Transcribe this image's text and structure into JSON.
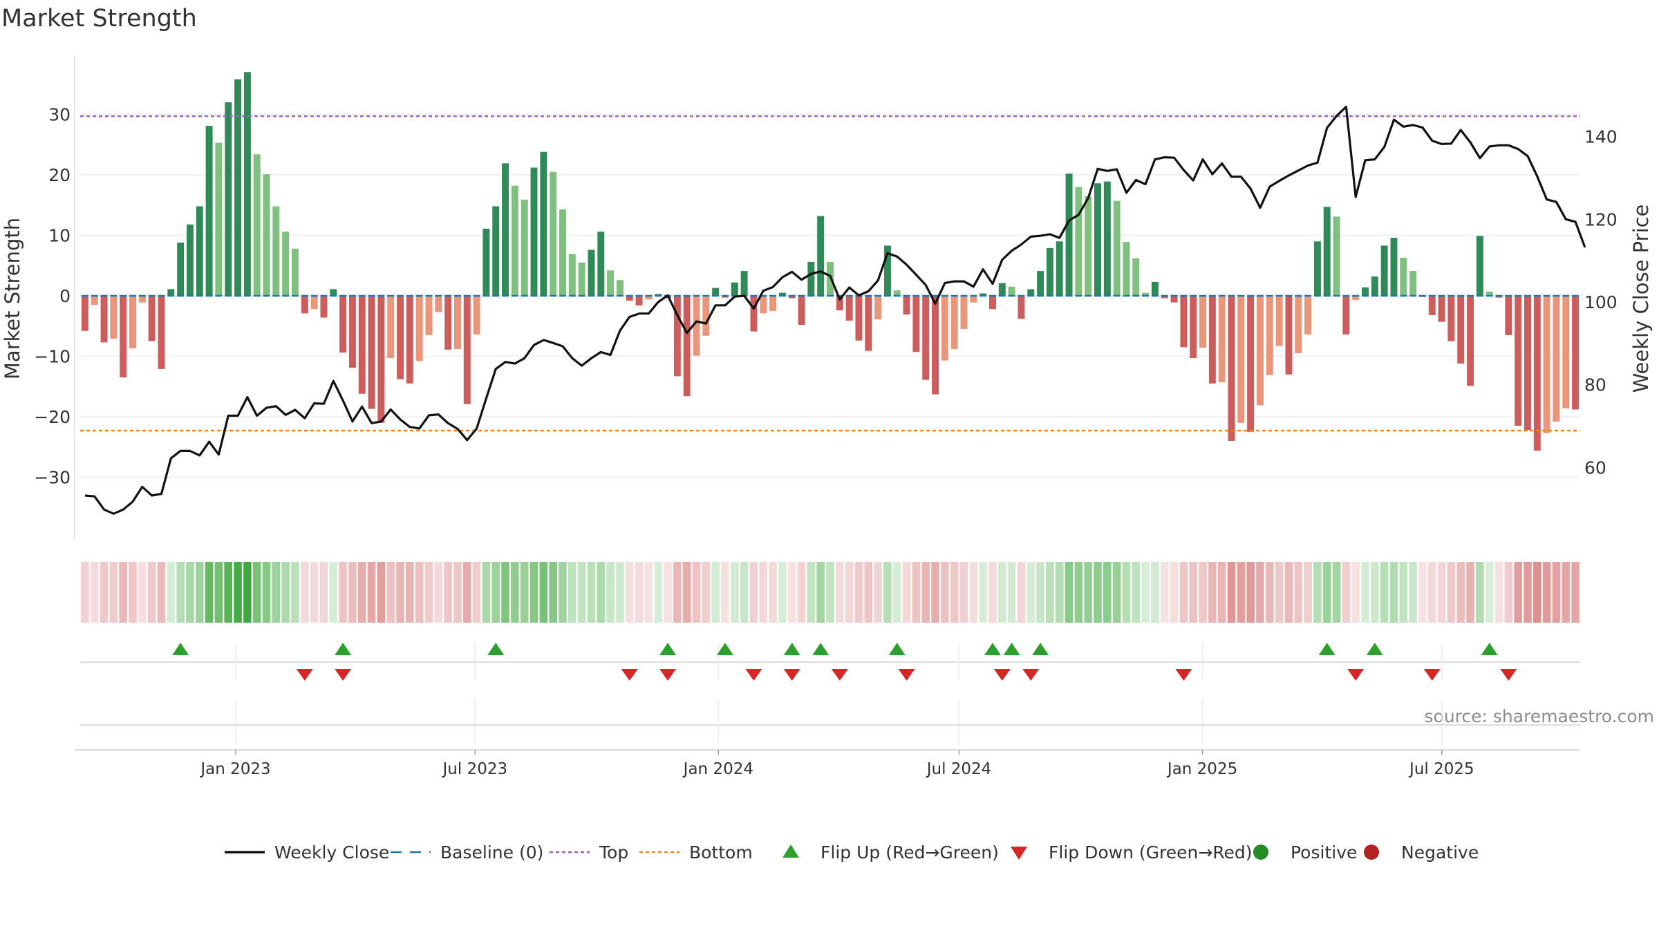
{
  "chart_data": {
    "type": "bar",
    "title": "Market Strength",
    "ylabel_left": "Market Strength",
    "ylabel_right": "Weekly Close Price",
    "source": "source: sharemaestro.com",
    "left_axis": {
      "ylim": [
        -40,
        40
      ],
      "ticks": [
        -30,
        -20,
        -10,
        0,
        10,
        20,
        30
      ]
    },
    "right_axis": {
      "ylim": [
        43,
        160
      ],
      "ticks": [
        60,
        80,
        100,
        120,
        140
      ]
    },
    "top_level": 29.7,
    "bottom_level": -22.3,
    "x_axis": {
      "start_date": "2022-09-09",
      "end_date": "2025-10-10",
      "tick_labels": [
        "Jan 2023",
        "Jul 2023",
        "Jan 2024",
        "Jul 2024",
        "Jan 2025",
        "Jul 2025"
      ],
      "tick_dates": [
        "2023-01-01",
        "2023-07-01",
        "2024-01-01",
        "2024-07-01",
        "2025-01-01",
        "2025-07-01"
      ]
    },
    "grid": true,
    "legend_position": "bottom-center",
    "series": [
      {
        "name": "Weekly Close",
        "values": [
          53.2,
          53.0,
          49.8,
          48.8,
          49.8,
          51.7,
          55.3,
          53.2,
          53.6,
          62.2,
          64.0,
          64.0,
          62.9,
          66.2,
          63.1,
          72.5,
          72.5,
          77.0,
          72.5,
          74.4,
          74.8,
          72.7,
          73.9,
          71.9,
          75.5,
          75.4,
          80.9,
          76.2,
          71.1,
          74.7,
          70.7,
          71.1,
          74.0,
          71.6,
          69.8,
          69.4,
          72.6,
          72.8,
          70.7,
          69.3,
          66.6,
          69.4,
          76.7,
          83.8,
          85.5,
          85.1,
          86.4,
          89.6,
          90.8,
          90.1,
          89.3,
          86.4,
          84.6,
          86.4,
          87.9,
          87.2,
          93.1,
          96.4,
          97.2,
          97.2,
          100.0,
          101.6,
          96.8,
          92.5,
          95.3,
          94.8,
          99.2,
          99.2,
          101.3,
          101.5,
          98.4,
          102.7,
          103.6,
          106.0,
          107.3,
          105.4,
          106.8,
          107.4,
          106.3,
          100.6,
          103.5,
          101.6,
          102.6,
          105.2,
          111.8,
          111.0,
          109.0,
          106.6,
          104.1,
          99.6,
          104.6,
          105.0,
          105.0,
          103.7,
          107.9,
          104.4,
          110.2,
          112.4,
          113.9,
          115.8,
          116.0,
          116.4,
          115.5,
          119.7,
          121.1,
          125.1,
          132.2,
          131.7,
          132.1,
          126.4,
          129.5,
          128.5,
          134.5,
          135.0,
          134.9,
          131.9,
          129.4,
          134.5,
          130.9,
          133.5,
          130.3,
          130.3,
          127.4,
          122.8,
          127.9,
          129.3,
          130.6,
          131.8,
          133.0,
          133.7,
          142.1,
          145.0,
          147.2,
          125.4,
          134.3,
          134.5,
          137.5,
          144.1,
          142.4,
          142.8,
          142.2,
          139.0,
          138.2,
          138.3,
          141.6,
          138.6,
          134.8,
          137.6,
          137.9,
          137.9,
          137.0,
          135.3,
          130.4,
          124.8,
          124.2,
          120.0,
          119.4,
          113.2
        ]
      },
      {
        "name": "Market Strength",
        "values": [
          -5.8,
          -1.5,
          -7.7,
          -7.1,
          -13.5,
          -8.7,
          -1.1,
          -7.5,
          -12.1,
          1.1,
          8.8,
          11.8,
          14.8,
          28.1,
          25.3,
          32.0,
          35.8,
          37.0,
          23.4,
          20.1,
          14.8,
          10.6,
          7.8,
          -2.9,
          -2.2,
          -3.6,
          1.1,
          -9.4,
          -11.9,
          -16.2,
          -18.7,
          -21.0,
          -10.3,
          -13.8,
          -14.5,
          -10.8,
          -6.5,
          -2.7,
          -8.9,
          -8.8,
          -17.9,
          -6.4,
          11.1,
          14.8,
          21.9,
          18.2,
          15.9,
          21.2,
          23.8,
          20.5,
          14.3,
          6.9,
          5.5,
          7.6,
          10.6,
          4.2,
          2.6,
          -0.8,
          -1.6,
          -0.6,
          0.3,
          -0.4,
          -13.3,
          -16.6,
          -9.9,
          -6.6,
          1.3,
          -0.3,
          2.2,
          4.1,
          -5.9,
          -2.9,
          -2.5,
          0.5,
          -0.4,
          -4.8,
          5.6,
          13.2,
          5.6,
          -2.4,
          -4.1,
          -7.4,
          -9.1,
          -3.9,
          8.3,
          0.9,
          -3.1,
          -9.3,
          -13.9,
          -16.3,
          -10.7,
          -8.8,
          -5.5,
          -1.1,
          0.4,
          -2.2,
          2.1,
          1.5,
          -3.8,
          1.1,
          4.1,
          7.9,
          9.0,
          20.2,
          18.0,
          16.5,
          18.6,
          18.9,
          15.7,
          8.9,
          6.2,
          0.5,
          2.3,
          -0.4,
          -1.1,
          -8.5,
          -10.3,
          -8.6,
          -14.5,
          -14.3,
          -24.0,
          -21.0,
          -22.5,
          -18.1,
          -13.1,
          -8.3,
          -13.0,
          -9.5,
          -6.4,
          9.0,
          14.7,
          13.1,
          -6.4,
          -0.7,
          1.4,
          3.2,
          8.3,
          9.6,
          6.3,
          4.1,
          -0.2,
          -3.2,
          -4.3,
          -7.5,
          -11.2,
          -14.9,
          9.9,
          0.7,
          -0.3,
          -6.5,
          -21.5,
          -22.2,
          -25.6,
          -22.7,
          -20.8,
          -18.6,
          -18.8
        ]
      }
    ],
    "flip_up_weeks": [
      10,
      27,
      43,
      61,
      67,
      74,
      77,
      85,
      95,
      97,
      100,
      130,
      135,
      147
    ],
    "flip_down_weeks": [
      23,
      27,
      57,
      61,
      70,
      74,
      79,
      86,
      96,
      99,
      115,
      133,
      141,
      149
    ],
    "legend": [
      "Weekly Close",
      "Baseline (0)",
      "Top",
      "Bottom",
      "Flip Up (Red→Green)",
      "Flip Down (Green→Red)",
      "Positive",
      "Negative"
    ],
    "colors": {
      "strong_green": "#2e8b57",
      "light_green": "#7fbf7f",
      "strong_red": "#cd5c5c",
      "light_red": "#e9967a",
      "close_line": "#111111",
      "baseline": "#1f77b4",
      "top_line": "#9467bd",
      "bottom_line": "#ff7f0e",
      "flip_up": "#2ca02c",
      "flip_down": "#d62728",
      "positive": "#228b22",
      "negative": "#b22222"
    }
  }
}
